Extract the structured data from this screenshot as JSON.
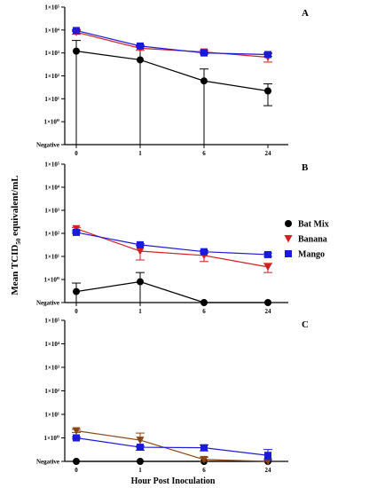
{
  "figure": {
    "ylabel_main": "Mean TCID",
    "ylabel_sub": "50",
    "ylabel_tail": " equivalent/mL",
    "xlabel": "Hour Post Inoculation"
  },
  "legend": {
    "items": [
      {
        "label": "Bat Mix",
        "color": "#000000",
        "marker": "circle"
      },
      {
        "label": "Banana",
        "color": "#d21f1f",
        "marker": "triangle-down"
      },
      {
        "label": "Mango",
        "color": "#1a1adb",
        "marker": "square"
      }
    ]
  },
  "chart_data": [
    {
      "type": "line",
      "panel": "A",
      "x": [
        "0",
        "1",
        "6",
        "24"
      ],
      "y_scale": "log",
      "y_ticks": [
        "Negative",
        "1×10⁰",
        "1×10¹",
        "1×10²",
        "1×10³",
        "1×10⁴",
        "1×10⁵"
      ],
      "series": [
        {
          "name": "Bat Mix",
          "values": [
            1200,
            500,
            60,
            22
          ],
          "err_low": [
            0.1,
            0.1,
            0.1,
            5
          ],
          "err_high": [
            3500,
            2000,
            200,
            45
          ],
          "color": "#000000",
          "marker": "circle"
        },
        {
          "name": "Banana",
          "values": [
            8000,
            1600,
            1100,
            650
          ],
          "err_low": [
            6500,
            1300,
            900,
            400
          ],
          "err_high": [
            9500,
            1900,
            1300,
            900
          ],
          "color": "#d21f1f",
          "marker": "triangle-down"
        },
        {
          "name": "Mango",
          "values": [
            9500,
            2000,
            1000,
            850
          ],
          "err_low": [
            8500,
            1800,
            900,
            700
          ],
          "err_high": [
            10500,
            2200,
            1100,
            1000
          ],
          "color": "#1a1adb",
          "marker": "square"
        }
      ]
    },
    {
      "type": "line",
      "panel": "B",
      "x": [
        "0",
        "1",
        "6",
        "24"
      ],
      "y_scale": "log",
      "y_ticks": [
        "Negative",
        "1×10⁰",
        "1×10¹",
        "1×10²",
        "1×10³",
        "1×10⁴",
        "1×10⁵"
      ],
      "series": [
        {
          "name": "Bat Mix",
          "values": [
            0.3,
            0.8,
            0.1,
            0.1
          ],
          "err_low": [
            0.1,
            0.1,
            0.1,
            0.1
          ],
          "err_high": [
            0.7,
            2,
            0.1,
            0.1
          ],
          "color": "#000000",
          "marker": "circle"
        },
        {
          "name": "Banana",
          "values": [
            160,
            17,
            11,
            3.5
          ],
          "err_low": [
            140,
            7,
            6,
            2
          ],
          "err_high": [
            180,
            30,
            18,
            5
          ],
          "color": "#d21f1f",
          "marker": "triangle-down"
        },
        {
          "name": "Mango",
          "values": [
            110,
            32,
            16,
            12
          ],
          "err_low": [
            100,
            29,
            14,
            10
          ],
          "err_high": [
            120,
            35,
            18,
            14
          ],
          "color": "#1a1adb",
          "marker": "square"
        }
      ]
    },
    {
      "type": "line",
      "panel": "C",
      "x": [
        "0",
        "1",
        "6",
        "24"
      ],
      "y_scale": "log",
      "y_ticks": [
        "Negative",
        "1×10⁰",
        "1×10¹",
        "1×10²",
        "1×10³",
        "1×10⁴",
        "1×10⁵"
      ],
      "series": [
        {
          "name": "Bat Mix",
          "values": [
            0.1,
            0.1,
            0.1,
            0.1
          ],
          "err_low": [
            0.1,
            0.1,
            0.1,
            0.1
          ],
          "err_high": [
            0.1,
            0.1,
            0.1,
            0.1
          ],
          "color": "#000000",
          "marker": "circle"
        },
        {
          "name": "Banana",
          "values": [
            2,
            0.8,
            0.12,
            0.1
          ],
          "err_low": [
            1.7,
            0.4,
            0.1,
            0.1
          ],
          "err_high": [
            2.3,
            1.6,
            0.15,
            0.1
          ],
          "color": "#8b4513",
          "marker": "triangle-down"
        },
        {
          "name": "Mango",
          "values": [
            1,
            0.4,
            0.38,
            0.18
          ],
          "err_low": [
            0.9,
            0.3,
            0.28,
            0.12
          ],
          "err_high": [
            1.1,
            0.45,
            0.5,
            0.32
          ],
          "color": "#1a1adb",
          "marker": "square"
        }
      ]
    }
  ]
}
